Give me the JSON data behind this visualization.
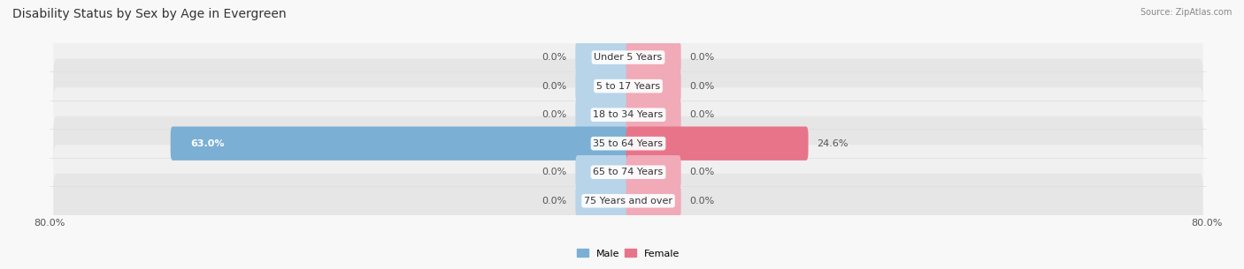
{
  "title": "Disability Status by Sex by Age in Evergreen",
  "source": "Source: ZipAtlas.com",
  "categories": [
    "Under 5 Years",
    "5 to 17 Years",
    "18 to 34 Years",
    "35 to 64 Years",
    "65 to 74 Years",
    "75 Years and over"
  ],
  "male_values": [
    0.0,
    0.0,
    0.0,
    63.0,
    0.0,
    0.0
  ],
  "female_values": [
    0.0,
    0.0,
    0.0,
    24.6,
    0.0,
    0.0
  ],
  "x_max": 80.0,
  "male_color": "#7bafd4",
  "female_color": "#e8748a",
  "male_color_light": "#b8d4e8",
  "female_color_light": "#f0aab8",
  "row_bg_color_odd": "#f0f0f0",
  "row_bg_color_even": "#e6e6e6",
  "legend_male_color": "#7bafd4",
  "legend_female_color": "#e8748a",
  "title_fontsize": 10,
  "label_fontsize": 8,
  "tick_fontsize": 8,
  "bar_height": 0.58,
  "stub_size": 7.0
}
